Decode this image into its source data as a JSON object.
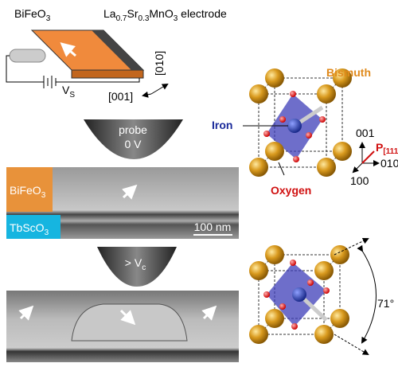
{
  "device": {
    "film": [
      "BiFeO",
      "3"
    ],
    "electrode": [
      "La",
      "0.7",
      "Sr",
      "0.3",
      "MnO",
      "3",
      " electrode"
    ],
    "voltage": [
      "V",
      "S"
    ],
    "axis_a": "[010]",
    "axis_b": "[001]"
  },
  "probe_top": {
    "label": "probe",
    "voltage": "0 V"
  },
  "image_top": {
    "film": [
      "BiFeO",
      "3"
    ],
    "substrate": [
      "TbScO",
      "3"
    ],
    "scale": "100 nm"
  },
  "probe_bottom": {
    "voltage": [
      "> V",
      "c"
    ]
  },
  "crystal": {
    "bismuth": "Bismuth",
    "iron": "Iron",
    "oxygen": "Oxygen",
    "axis_z": "001",
    "polarization": [
      "P",
      "[111]"
    ],
    "axis_y": "010",
    "axis_x": "100",
    "angle": "71°"
  }
}
